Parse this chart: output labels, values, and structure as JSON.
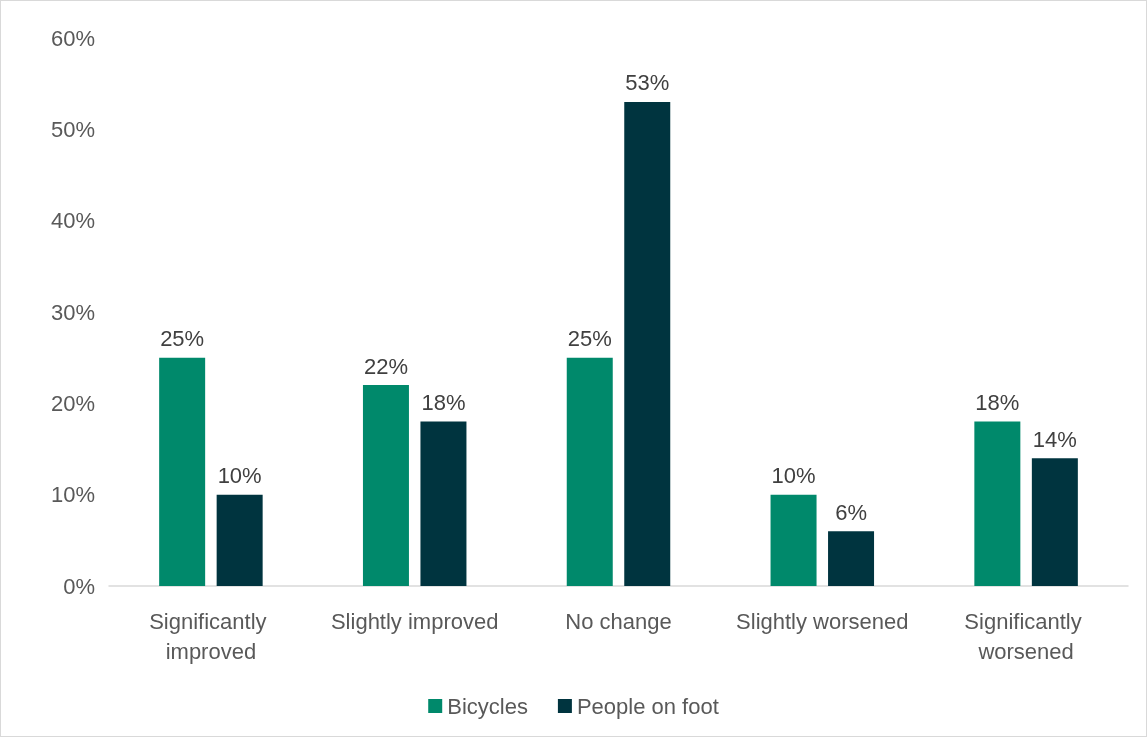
{
  "chart_data": {
    "type": "bar",
    "categories": [
      "Significantly improved",
      "Slightly improved",
      "No change",
      "Slightly worsened",
      "Significantly worsened"
    ],
    "series": [
      {
        "name": "Bicycles",
        "color": "#00896b",
        "values": [
          25,
          22,
          25,
          10,
          18
        ],
        "value_labels": [
          "25%",
          "22%",
          "25%",
          "10%",
          "18%"
        ]
      },
      {
        "name": "People on foot",
        "color": "#00343f",
        "values": [
          10,
          18,
          53,
          6,
          14
        ],
        "value_labels": [
          "10%",
          "18%",
          "53%",
          "6%",
          "14%"
        ]
      }
    ],
    "ylim": [
      0,
      60
    ],
    "yticks": [
      {
        "value": 0,
        "label": "0%"
      },
      {
        "value": 10,
        "label": "10%"
      },
      {
        "value": 20,
        "label": "20%"
      },
      {
        "value": 30,
        "label": "30%"
      },
      {
        "value": 40,
        "label": "40%"
      },
      {
        "value": 50,
        "label": "50%"
      },
      {
        "value": 60,
        "label": "60%"
      }
    ],
    "grid": false,
    "legend": "bottom"
  }
}
